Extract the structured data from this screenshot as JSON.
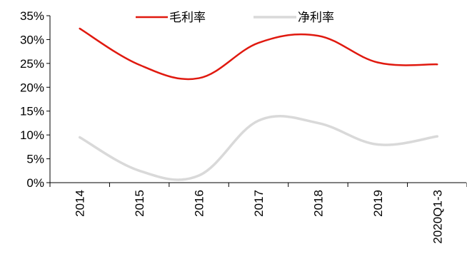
{
  "chart_data": {
    "type": "line",
    "title": "",
    "xlabel": "",
    "ylabel": "",
    "categories": [
      "2014",
      "2015",
      "2016",
      "2017",
      "2018",
      "2019",
      "2020Q1-3"
    ],
    "series": [
      {
        "name": "毛利率",
        "color": "#e0190f",
        "values": [
          32.3,
          24.7,
          21.9,
          29.3,
          30.8,
          25.2,
          24.8
        ]
      },
      {
        "name": "净利率",
        "color": "#d9d9d9",
        "values": [
          9.5,
          2.5,
          1.5,
          13.0,
          12.5,
          8.0,
          9.7
        ]
      }
    ],
    "yticks": [
      "0%",
      "5%",
      "10%",
      "15%",
      "20%",
      "25%",
      "30%",
      "35%"
    ],
    "ylim": [
      0,
      35
    ],
    "grid": false,
    "legend_position": "top"
  }
}
